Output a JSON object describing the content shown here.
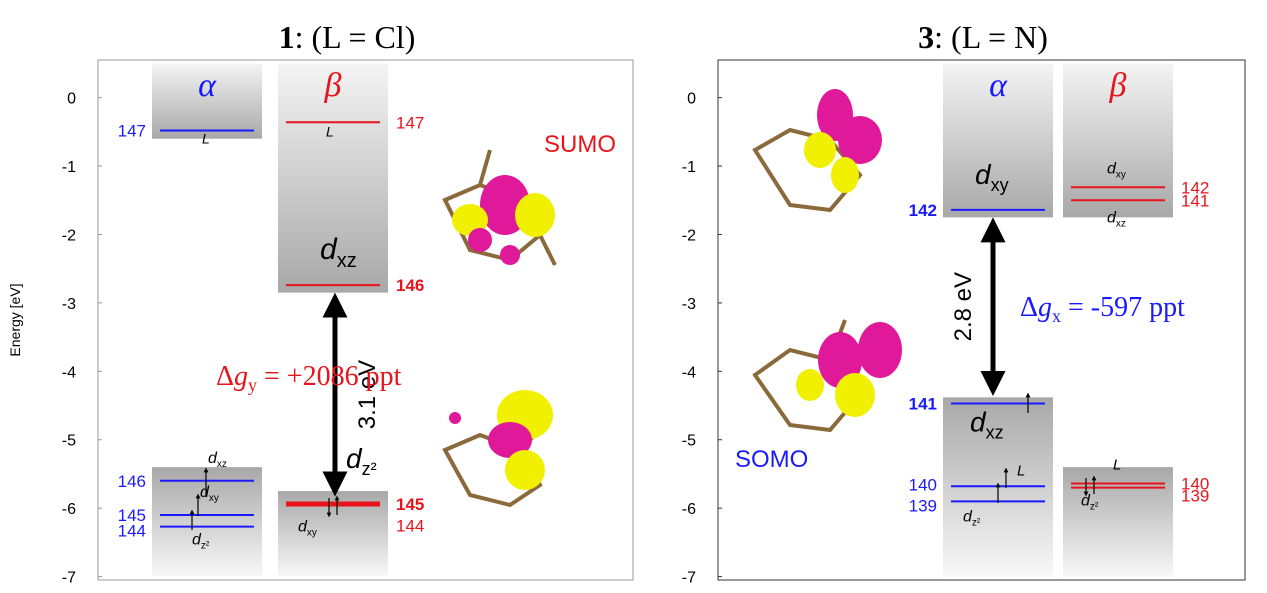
{
  "chart_data": [
    {
      "type": "levels",
      "title": [
        "1",
        ": (L = Cl)"
      ],
      "ylabel": "Energy [eV]",
      "ylim": [
        -7.05,
        0.55
      ],
      "yticks": [
        0,
        -1,
        -2,
        -3,
        -4,
        -5,
        -6,
        -7
      ],
      "columns": [
        {
          "name": "α",
          "color": "#1a1aff",
          "boxes": [
            [
              0.5,
              -0.6
            ],
            [
              -5.4,
              -7.0
            ]
          ],
          "levels": [
            {
              "label": "147",
              "energy": -0.48,
              "orbital": [
                "L"
              ]
            },
            {
              "label": "146",
              "energy": -5.6,
              "orbital": [
                "d",
                "xz"
              ]
            },
            {
              "label": "145",
              "energy": -6.1,
              "orbital": [
                "d",
                "xy"
              ]
            },
            {
              "label": "144",
              "energy": -6.27,
              "orbital": [
                "d",
                "z²"
              ]
            }
          ]
        },
        {
          "name": "β",
          "color": "#e8141b",
          "boxes": [
            [
              0.5,
              -2.85
            ],
            [
              -5.75,
              -7.0
            ]
          ],
          "levels": [
            {
              "label": "147",
              "energy": -0.36,
              "orbital": [
                "L"
              ]
            },
            {
              "label": "146",
              "energy": -2.74,
              "orbital": [
                "d",
                "xz"
              ]
            },
            {
              "label": "145",
              "energy": -5.94,
              "orbital": [
                "d",
                "z²"
              ]
            },
            {
              "label": "144",
              "energy": -5.96,
              "orbital": [
                "d",
                "xy"
              ]
            }
          ]
        }
      ],
      "gap": "3.1 eV",
      "annotation": {
        "text": [
          "Δ",
          "g",
          "y",
          " = +2086 ppt"
        ],
        "color": "#e8141b"
      },
      "orbital_name": {
        "text": "SUMO",
        "color": "#e8141b"
      }
    },
    {
      "type": "levels",
      "title": [
        "3",
        ": (L = N)"
      ],
      "ylim": [
        -7.05,
        0.55
      ],
      "yticks": [
        0,
        -1,
        -2,
        -3,
        -4,
        -5,
        -6,
        -7
      ],
      "columns": [
        {
          "name": "α",
          "color": "#1a1aff",
          "boxes": [
            [
              0.5,
              -1.75
            ],
            [
              -4.38,
              -7.0
            ]
          ],
          "levels": [
            {
              "label": "142",
              "energy": -1.64,
              "orbital": [
                "d",
                "xy"
              ]
            },
            {
              "label": "141",
              "energy": -4.47,
              "orbital": [
                "d",
                "xz"
              ]
            },
            {
              "label": "140",
              "energy": -5.68,
              "orbital": [
                "L"
              ]
            },
            {
              "label": "139",
              "energy": -5.9,
              "orbital": [
                "d",
                "z²"
              ]
            }
          ]
        },
        {
          "name": "β",
          "color": "#e8141b",
          "boxes": [
            [
              0.5,
              -1.75
            ],
            [
              -5.4,
              -7.0
            ]
          ],
          "levels": [
            {
              "label": "142",
              "energy": -1.31,
              "orbital": [
                "d",
                "xy"
              ]
            },
            {
              "label": "141",
              "energy": -1.5,
              "orbital": [
                "d",
                "xz"
              ]
            },
            {
              "label": "140",
              "energy": -5.64,
              "orbital": [
                "L"
              ]
            },
            {
              "label": "139",
              "energy": -5.7,
              "orbital": [
                "d",
                "z²"
              ]
            }
          ]
        }
      ],
      "gap": "2.8 eV",
      "annotation": {
        "text": [
          "Δ",
          "g",
          "x",
          " = -597 ppt"
        ],
        "color": "#1a1aff"
      },
      "orbital_name": {
        "text": "SOMO",
        "color": "#1a1aff"
      }
    }
  ]
}
